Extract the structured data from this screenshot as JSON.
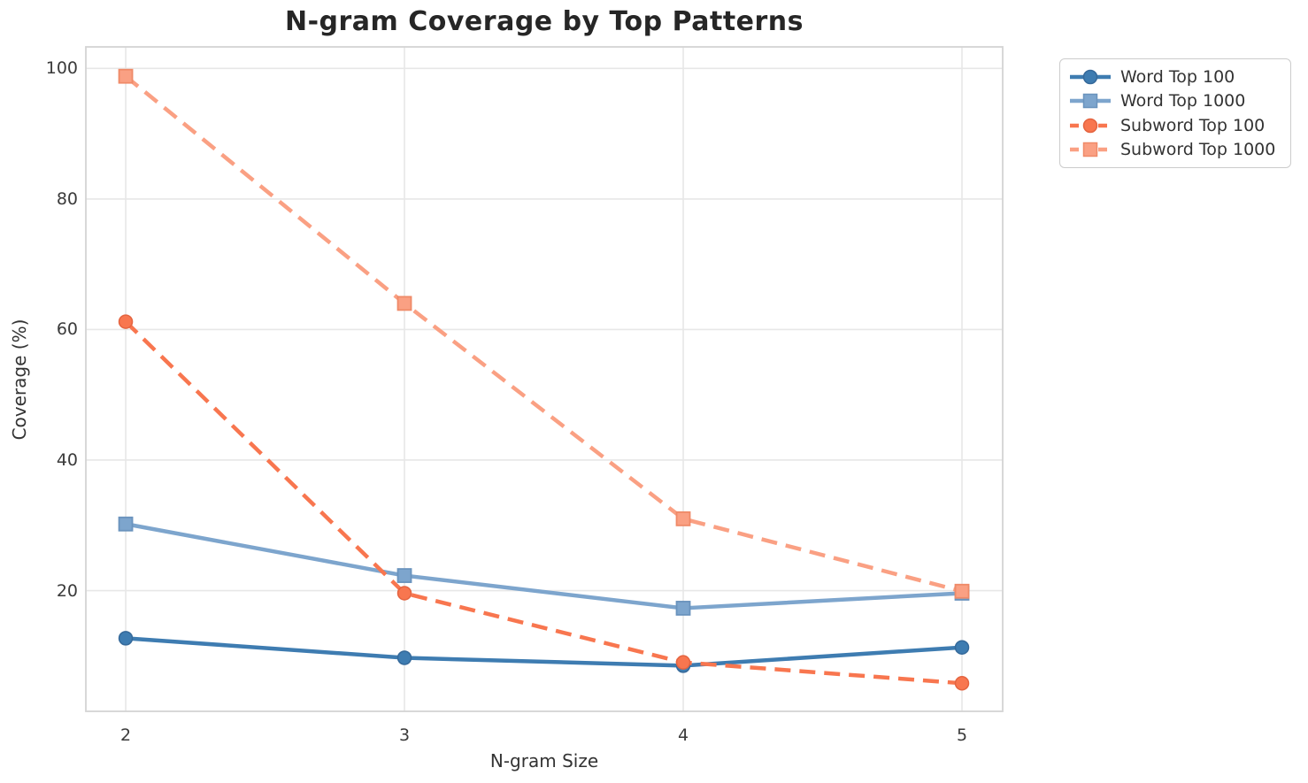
{
  "chart_data": {
    "type": "line",
    "title": "N-gram Coverage by Top Patterns",
    "xlabel": "N-gram Size",
    "ylabel": "Coverage (%)",
    "x": [
      2,
      3,
      4,
      5
    ],
    "xticks": [
      "2",
      "3",
      "4",
      "5"
    ],
    "yticks": [
      "20",
      "40",
      "60",
      "80",
      "100"
    ],
    "ytick_values": [
      20,
      40,
      60,
      80,
      100
    ],
    "xlim": [
      1.857,
      5.146
    ],
    "ylim": [
      1.5,
      103.3
    ],
    "grid": true,
    "legend_position": "upper right, outside plot",
    "series": [
      {
        "name": "Word Top 100",
        "values": [
          12.7,
          9.7,
          8.5,
          11.3
        ],
        "color": "#3e7cb1",
        "edge_color": "#35699a",
        "line_style": "solid",
        "marker": "circle"
      },
      {
        "name": "Word Top 1000",
        "values": [
          30.2,
          22.3,
          17.3,
          19.6
        ],
        "color": "#7da5cd",
        "edge_color": "#6a93bd",
        "line_style": "solid",
        "marker": "square"
      },
      {
        "name": "Subword Top 100",
        "values": [
          61.2,
          19.6,
          9.0,
          5.8
        ],
        "color": "#f8764f",
        "edge_color": "#e46440",
        "line_style": "dashed",
        "marker": "circle"
      },
      {
        "name": "Subword Top 1000",
        "values": [
          98.8,
          64.0,
          31.0,
          19.9
        ],
        "color": "#faa083",
        "edge_color": "#ef8a68",
        "line_style": "dashed",
        "marker": "square"
      }
    ],
    "colors": {
      "background": "#ffffff",
      "grid": "#e7e7e7",
      "spine": "#d4d4d4",
      "title": "#262626",
      "tick_text": "#3a3a3a",
      "label_text": "#333333"
    }
  }
}
